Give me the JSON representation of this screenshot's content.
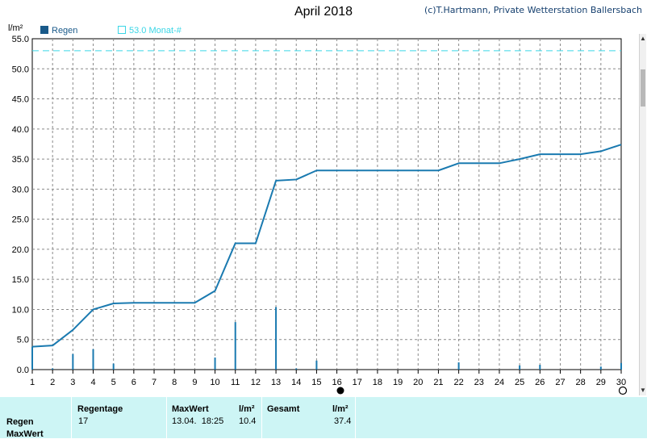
{
  "header": {
    "title": "April 2018",
    "copyright": "(c)T.Hartmann, Private Wetterstation Ballersbach"
  },
  "colors": {
    "series": "#1a7ab0",
    "reference": "#3ad6e6",
    "grid": "#8a8a8a",
    "table_bg": "#cdf5f5"
  },
  "chart_data": {
    "type": "line",
    "ylabel": "l/m²",
    "ylim": [
      0,
      55
    ],
    "yticks": [
      "0.0",
      "5.0",
      "10.0",
      "15.0",
      "20.0",
      "25.0",
      "30.0",
      "35.0",
      "40.0",
      "45.0",
      "50.0",
      "55.0"
    ],
    "xlim": [
      1,
      30
    ],
    "xticks": [
      "1",
      "2",
      "3",
      "4",
      "5",
      "6",
      "7",
      "8",
      "9",
      "10",
      "11",
      "12",
      "13",
      "14",
      "15",
      "16",
      "17",
      "18",
      "19",
      "20",
      "21",
      "22",
      "23",
      "24",
      "25",
      "26",
      "27",
      "28",
      "29",
      "30"
    ],
    "grid": true,
    "legend_position": "top-left",
    "legend": {
      "bar_label": "Regen",
      "reference_label": "53.0 Monat-#"
    },
    "reference_value": 53.0,
    "cumulative": {
      "x": [
        1,
        2,
        3,
        4,
        5,
        6,
        7,
        8,
        9,
        10,
        11,
        12,
        13,
        14,
        15,
        16,
        17,
        18,
        19,
        20,
        21,
        22,
        23,
        24,
        25,
        26,
        27,
        28,
        29,
        30
      ],
      "y": [
        3.8,
        4.0,
        6.6,
        10.0,
        11.0,
        11.1,
        11.1,
        11.1,
        11.1,
        13.1,
        21.0,
        21.0,
        31.4,
        31.6,
        33.1,
        33.1,
        33.1,
        33.1,
        33.1,
        33.1,
        33.1,
        34.3,
        34.3,
        34.3,
        35.0,
        35.8,
        35.8,
        35.8,
        36.3,
        37.4
      ]
    },
    "daily_bars": {
      "x": [
        1,
        2,
        3,
        4,
        5,
        10,
        11,
        13,
        14,
        15,
        22,
        25,
        26,
        29,
        30
      ],
      "y": [
        3.8,
        0.2,
        2.6,
        3.4,
        1.0,
        2.0,
        7.9,
        10.4,
        0.2,
        1.5,
        1.2,
        0.7,
        0.8,
        0.5,
        1.1
      ]
    }
  },
  "summary_table": {
    "headers": {
      "regentage": "Regentage",
      "maxwert": "MaxWert",
      "unit1": "l/m²",
      "gesamt": "Gesamt",
      "unit2": "l/m²"
    },
    "row_regen": {
      "label": "Regen",
      "regentage": "17",
      "max_datetime": "13.04.  18:25",
      "max_value": "10.4",
      "total": "37.4"
    },
    "row_maxwert": {
      "label": "MaxWert"
    }
  }
}
